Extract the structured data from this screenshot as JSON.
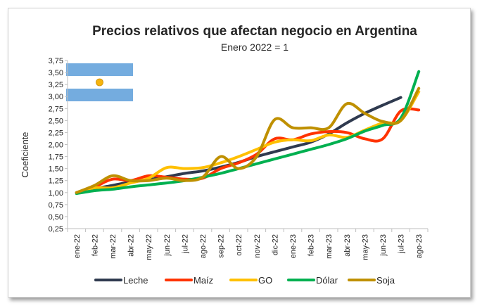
{
  "chart_data": {
    "type": "line",
    "title": "Precios relativos que afectan negocio en Argentina",
    "subtitle": "Enero 2022 = 1",
    "xlabel": "",
    "ylabel": "Coeficiente",
    "ylim": [
      0.25,
      3.75
    ],
    "yticks": [
      "0,25",
      "0,50",
      "0,75",
      "1,00",
      "1,25",
      "1,50",
      "1,75",
      "2,00",
      "2,25",
      "2,50",
      "2,75",
      "3,00",
      "3,25",
      "3,50",
      "3,75"
    ],
    "categories": [
      "ene-22",
      "feb-22",
      "mar-22",
      "abr-22",
      "may-22",
      "jun-22",
      "jul-22",
      "ago-22",
      "sep-22",
      "oct-22",
      "nov-22",
      "dic-22",
      "ene-23",
      "feb-23",
      "mar-23",
      "abr-23",
      "may-23",
      "jun-23",
      "jul-23",
      "ago-23"
    ],
    "grid": false,
    "legend": "bottom",
    "series": [
      {
        "name": "Leche",
        "color": "#2f3a4f",
        "values": [
          1.0,
          1.08,
          1.15,
          1.22,
          1.27,
          1.33,
          1.4,
          1.45,
          1.53,
          1.63,
          1.75,
          1.85,
          1.95,
          2.05,
          2.22,
          2.45,
          2.65,
          2.82,
          2.98,
          null
        ]
      },
      {
        "name": "Maíz",
        "color": "#ff3300",
        "values": [
          1.0,
          1.12,
          1.28,
          1.25,
          1.35,
          1.32,
          1.28,
          1.3,
          1.5,
          1.62,
          1.8,
          2.12,
          2.1,
          2.22,
          2.27,
          2.25,
          2.12,
          2.12,
          2.7,
          2.72
        ]
      },
      {
        "name": "GO",
        "color": "#ffc000",
        "values": [
          1.0,
          1.1,
          1.1,
          1.2,
          1.3,
          1.52,
          1.5,
          1.52,
          1.62,
          1.75,
          1.9,
          2.05,
          2.1,
          2.08,
          2.2,
          2.15,
          2.3,
          2.45,
          2.5,
          3.1
        ]
      },
      {
        "name": "Dólar",
        "color": "#00b050",
        "values": [
          0.98,
          1.04,
          1.07,
          1.12,
          1.16,
          1.2,
          1.25,
          1.32,
          1.4,
          1.5,
          1.6,
          1.7,
          1.8,
          1.9,
          2.0,
          2.12,
          2.28,
          2.4,
          2.55,
          3.52
        ]
      },
      {
        "name": "Soja",
        "color": "#bf9000",
        "values": [
          1.0,
          1.15,
          1.35,
          1.25,
          1.25,
          1.3,
          1.25,
          1.32,
          1.75,
          1.5,
          1.75,
          2.52,
          2.35,
          2.35,
          2.35,
          2.85,
          2.65,
          2.48,
          2.5,
          3.17
        ]
      }
    ]
  },
  "flag": {
    "name": "argentina-flag",
    "blue": "#74acdf",
    "white": "#ffffff",
    "sun": "#f6b40e"
  }
}
